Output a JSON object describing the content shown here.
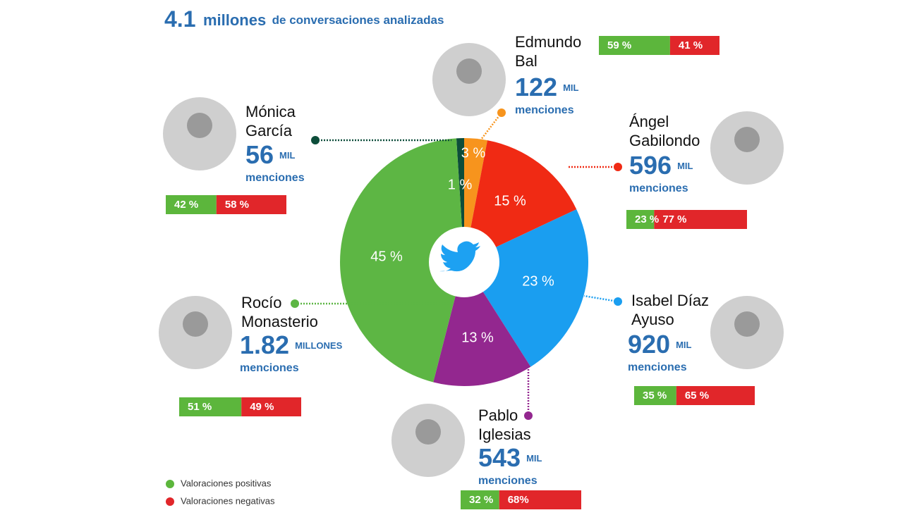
{
  "chart_data": {
    "type": "pie",
    "title": {
      "number": "4.1",
      "unit": "millones",
      "text": "de conversaciones analizadas"
    },
    "categories": [
      [
        "Mónica",
        "García"
      ],
      [
        "Edmundo",
        "Bal"
      ],
      [
        "Ángel",
        "Gabilondo"
      ],
      [
        "Isabel Díaz",
        "Ayuso"
      ],
      [
        "Pablo",
        "Iglesias"
      ],
      [
        "Rocío",
        "Monasterio"
      ]
    ],
    "values": [
      1,
      3,
      15,
      23,
      13,
      45
    ],
    "value_labels": [
      "1 %",
      "3 %",
      "15 %",
      "23 %",
      "13 %",
      "45 %"
    ],
    "colors": [
      "#0d4d3a",
      "#f7941d",
      "#f02a14",
      "#1a9ef0",
      "#93278f",
      "#5db644"
    ],
    "mentions": [
      56,
      122,
      596,
      920,
      543,
      1.82
    ],
    "mention_units": [
      "MIL",
      "MIL",
      "MIL",
      "MIL",
      "MIL",
      "MILLONES"
    ],
    "mentions_label": "menciones",
    "positive": [
      42,
      59,
      23,
      35,
      32,
      51
    ],
    "positive_labels": [
      "42 %",
      "59 %",
      "23 %",
      "35 %",
      "32 %",
      "51 %"
    ],
    "negative": [
      58,
      41,
      77,
      65,
      68,
      49
    ],
    "negative_labels": [
      "58 %",
      "41 %",
      "77 %",
      "65 %",
      "68%",
      "49 %"
    ],
    "positive_color": "#5cb63c",
    "negative_color": "#e1262a",
    "legend": [
      "Valoraciones positivas",
      "Valoraciones negativas"
    ]
  }
}
